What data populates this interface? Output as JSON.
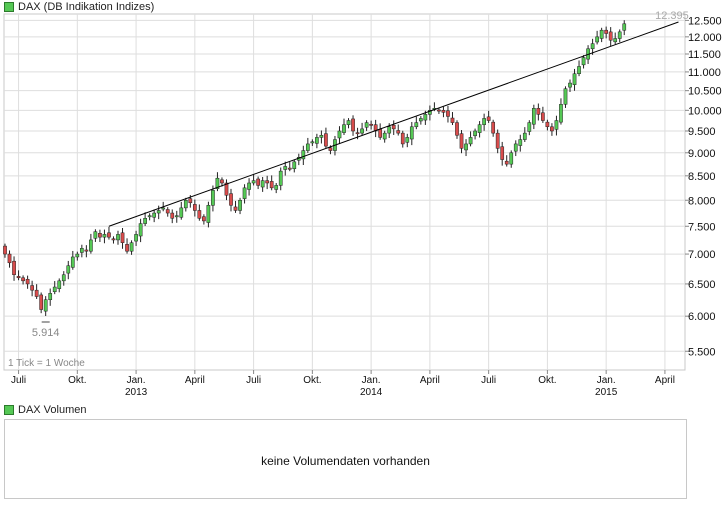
{
  "main_legend": {
    "label": "DAX (DB Indikation Indizes)",
    "color": "#55c855"
  },
  "volume_legend": {
    "label": "DAX Volumen",
    "color": "#55c855"
  },
  "volume_panel": {
    "message": "keine Volumendaten vorhanden"
  },
  "chart_data": {
    "type": "candlestick",
    "interval_note": "1 Tick = 1 Woche",
    "x_ticks": [
      {
        "label": "Juli",
        "year": "",
        "week": 3
      },
      {
        "label": "Okt.",
        "year": "",
        "week": 16
      },
      {
        "label": "Jan.",
        "year": "2013",
        "week": 29
      },
      {
        "label": "April",
        "year": "",
        "week": 42
      },
      {
        "label": "Juli",
        "year": "",
        "week": 55
      },
      {
        "label": "Okt.",
        "year": "",
        "week": 68
      },
      {
        "label": "Jan.",
        "year": "2014",
        "week": 81
      },
      {
        "label": "April",
        "year": "",
        "week": 94
      },
      {
        "label": "Juli",
        "year": "",
        "week": 107
      },
      {
        "label": "Okt.",
        "year": "",
        "week": 120
      },
      {
        "label": "Jan.",
        "year": "2015",
        "week": 133
      },
      {
        "label": "April",
        "year": "",
        "week": 146
      }
    ],
    "y_ticks": [
      5500,
      6000,
      6500,
      7000,
      7500,
      8000,
      8500,
      9000,
      9500,
      10000,
      10500,
      11000,
      11500,
      12000,
      12500
    ],
    "y_tick_labels": [
      "5.500",
      "6.000",
      "6.500",
      "7.000",
      "7.500",
      "8.000",
      "8.500",
      "9.000",
      "9.500",
      "10.000",
      "10.500",
      "11.000",
      "11.500",
      "12.000",
      "12.500"
    ],
    "ylim": [
      5250,
      12700
    ],
    "log_scale": true,
    "grid": true,
    "annotations": [
      {
        "label": "5.914",
        "value": 5914,
        "week": 9
      },
      {
        "label": "12.395",
        "value": 12395,
        "week": 148
      }
    ],
    "trendline": [
      {
        "week": 23,
        "value": 7500
      },
      {
        "week": 149,
        "value": 12450
      }
    ],
    "up_color": "#55c855",
    "down_color": "#d84c4c",
    "closes": [
      7000,
      6850,
      6650,
      6600,
      6550,
      6500,
      6400,
      6300,
      6100,
      6250,
      6350,
      6450,
      6550,
      6650,
      6800,
      6950,
      7000,
      7100,
      7050,
      7250,
      7400,
      7300,
      7350,
      7300,
      7250,
      7350,
      7200,
      7050,
      7200,
      7350,
      7550,
      7650,
      7700,
      7750,
      7800,
      7850,
      7750,
      7650,
      7700,
      7850,
      8000,
      7950,
      7800,
      7650,
      7600,
      7900,
      8200,
      8450,
      8350,
      8100,
      7900,
      7800,
      8000,
      8250,
      8350,
      8400,
      8300,
      8400,
      8350,
      8250,
      8300,
      8600,
      8700,
      8650,
      8800,
      8900,
      9050,
      9200,
      9250,
      9350,
      9400,
      9150,
      9050,
      9300,
      9500,
      9650,
      9750,
      9500,
      9450,
      9550,
      9700,
      9650,
      9500,
      9350,
      9450,
      9600,
      9550,
      9450,
      9200,
      9350,
      9600,
      9700,
      9800,
      9900,
      10000,
      10050,
      10000,
      9950,
      9850,
      9700,
      9400,
      9100,
      9200,
      9350,
      9500,
      9650,
      9800,
      9750,
      9450,
      9100,
      8850,
      8750,
      9000,
      9200,
      9300,
      9450,
      9700,
      10050,
      9900,
      9750,
      9600,
      9500,
      9750,
      10150,
      10550,
      10700,
      10950,
      11150,
      11400,
      11650,
      11800,
      12000,
      12200,
      12100,
      11900,
      11950,
      12150,
      12395
    ]
  }
}
